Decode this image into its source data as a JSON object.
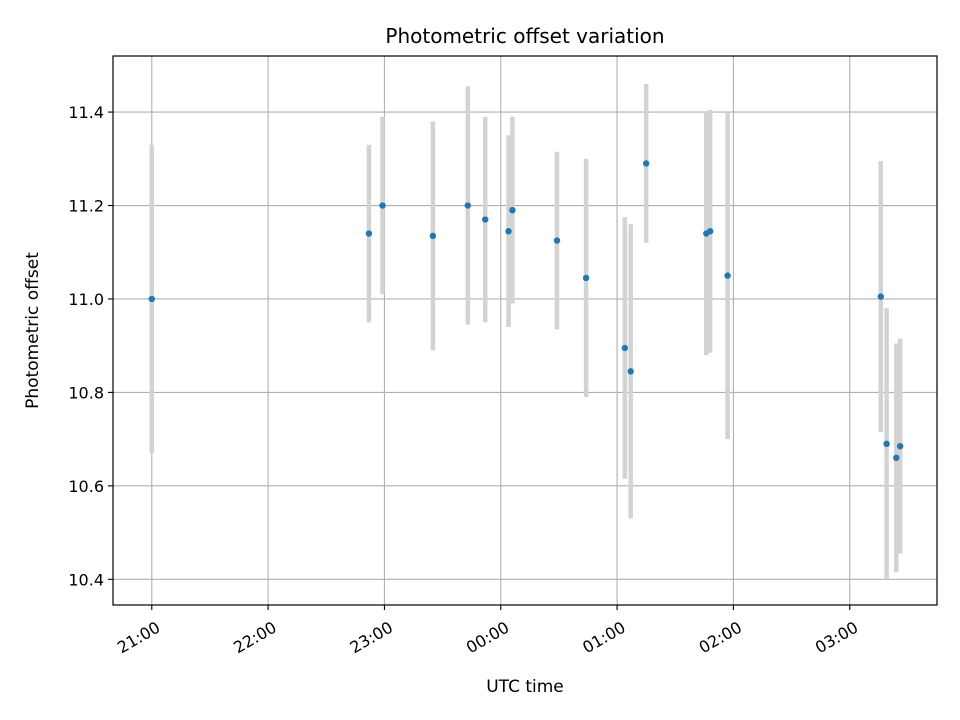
{
  "chart_data": {
    "type": "scatter",
    "title": "Photometric offset variation",
    "xlabel": "UTC time",
    "ylabel": "Photometric offset",
    "x_unit": "UTC time (hours, continuing past midnight)",
    "xlim": [
      "20:40",
      "03:45"
    ],
    "ylim": [
      10.345,
      11.52
    ],
    "grid": true,
    "x_ticks": [
      "21:00",
      "22:00",
      "23:00",
      "00:00",
      "01:00",
      "02:00",
      "03:00"
    ],
    "y_ticks": [
      "10.4",
      "10.6",
      "10.8",
      "11.0",
      "11.2",
      "11.4"
    ],
    "colors": {
      "points": "#1f77b4",
      "error_bars": "#d3d3d3",
      "grid": "#b0b0b0"
    },
    "points": [
      {
        "x": "21:00",
        "y": 11.0,
        "err": 0.33
      },
      {
        "x": "22:52",
        "y": 11.14,
        "err": 0.19
      },
      {
        "x": "22:59",
        "y": 11.2,
        "err": 0.19
      },
      {
        "x": "23:25",
        "y": 11.135,
        "err": 0.245
      },
      {
        "x": "23:43",
        "y": 11.2,
        "err": 0.255
      },
      {
        "x": "23:52",
        "y": 11.17,
        "err": 0.22
      },
      {
        "x": "00:04",
        "y": 11.145,
        "err": 0.205
      },
      {
        "x": "00:06",
        "y": 11.19,
        "err": 0.2
      },
      {
        "x": "00:29",
        "y": 11.125,
        "err": 0.19
      },
      {
        "x": "00:44",
        "y": 11.045,
        "err": 0.255
      },
      {
        "x": "01:04",
        "y": 10.895,
        "err": 0.28
      },
      {
        "x": "01:07",
        "y": 10.845,
        "err": 0.315
      },
      {
        "x": "01:15",
        "y": 11.29,
        "err": 0.17
      },
      {
        "x": "01:46",
        "y": 11.14,
        "err": 0.26
      },
      {
        "x": "01:48",
        "y": 11.145,
        "err": 0.26
      },
      {
        "x": "01:57",
        "y": 11.05,
        "err": 0.35
      },
      {
        "x": "03:16",
        "y": 11.005,
        "err": 0.29
      },
      {
        "x": "03:19",
        "y": 10.69,
        "err": 0.29
      },
      {
        "x": "03:24",
        "y": 10.66,
        "err": 0.245
      },
      {
        "x": "03:26",
        "y": 10.685,
        "err": 0.23
      }
    ]
  }
}
